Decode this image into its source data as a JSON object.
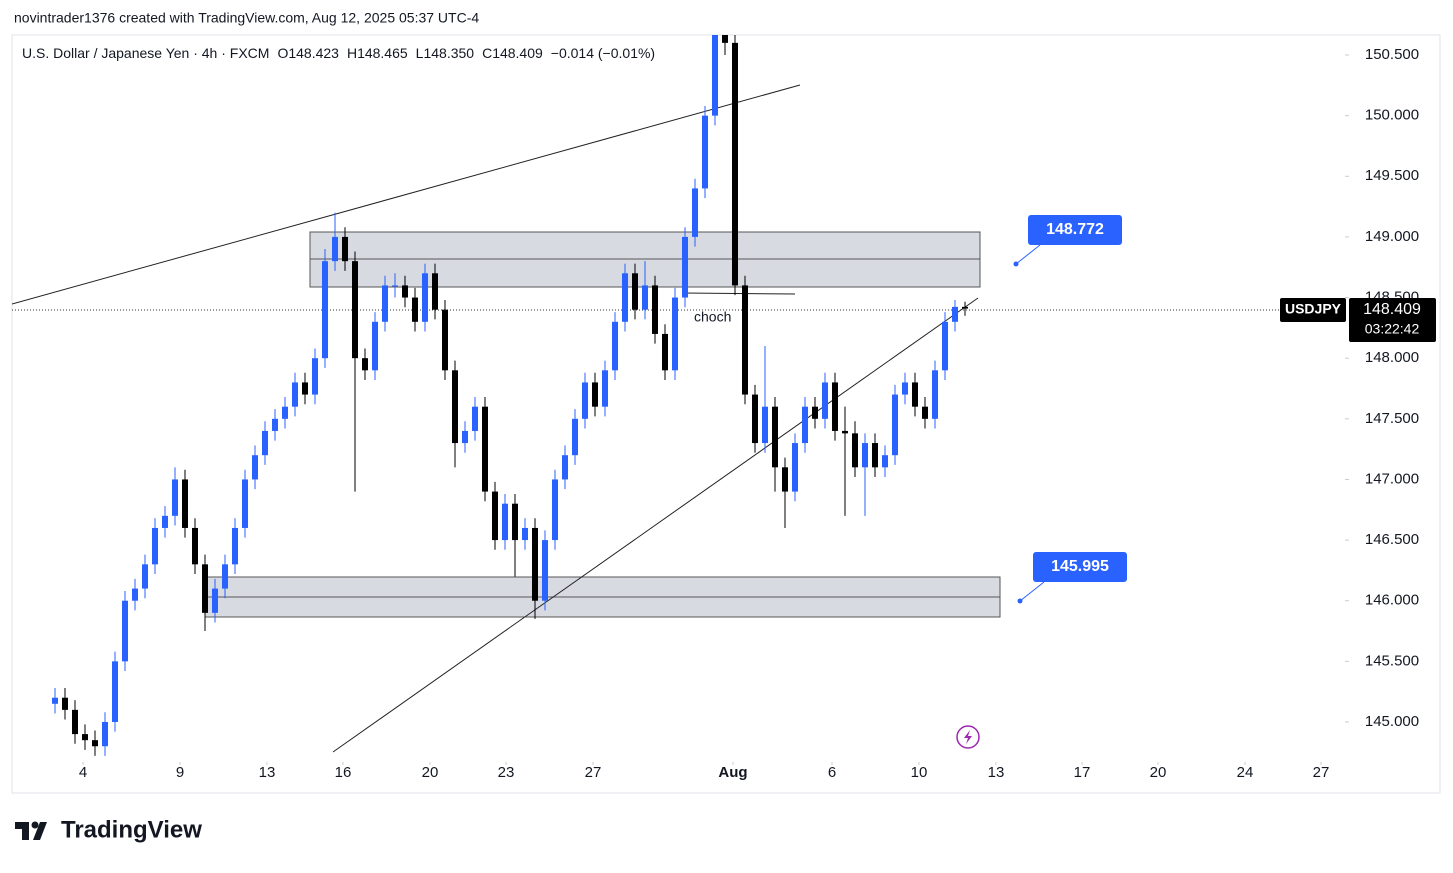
{
  "header": {
    "created_by": "novintrader1376 created with TradingView.com, Aug 12, 2025 05:37 UTC-4",
    "brand": "TradingView"
  },
  "chart_data": {
    "type": "candlestick",
    "title": "U.S. Dollar / Japanese Yen · 4h · FXCM",
    "ohlc_legend": [
      "O148.423",
      "H148.465",
      "L148.350",
      "C148.409",
      "−0.014 (−0.01%)"
    ],
    "symbol": "USDJPY",
    "last_price": "148.409",
    "countdown": "03:22:42",
    "annotations": [
      "choch",
      "148.772",
      "145.995"
    ],
    "up_color": "#2962ff",
    "down_color": "#000000",
    "open": [
      145.15,
      145.2,
      145.1,
      144.9,
      144.85,
      144.8,
      145.0,
      145.5,
      146.0,
      146.1,
      146.3,
      146.6,
      146.7,
      147.0,
      146.6,
      146.3,
      145.9,
      146.1,
      146.3,
      146.6,
      147.0,
      147.2,
      147.4,
      147.5,
      147.6,
      147.8,
      147.7,
      148.0,
      148.8,
      149.0,
      148.8,
      148.0,
      147.9,
      148.3,
      148.6,
      148.6,
      148.5,
      148.3,
      148.7,
      148.4,
      147.9,
      147.3,
      147.4,
      147.6,
      146.9,
      146.5,
      146.8,
      146.5,
      146.6,
      146.0,
      146.5,
      147.0,
      147.2,
      147.5,
      147.8,
      147.6,
      147.9,
      148.3,
      148.7,
      148.4,
      148.6,
      148.2,
      147.9,
      148.5,
      149.0,
      149.4,
      150.0,
      150.7,
      150.6,
      148.6,
      147.7,
      147.3,
      147.6,
      147.1,
      146.9,
      147.3,
      147.6,
      147.5,
      147.8,
      147.4,
      147.38,
      147.1,
      147.3,
      147.1,
      147.2,
      147.7,
      147.8,
      147.6,
      147.5,
      147.9,
      148.3,
      148.423
    ],
    "high": [
      145.28,
      145.28,
      145.18,
      144.98,
      144.93,
      145.08,
      145.58,
      146.08,
      146.18,
      146.38,
      146.68,
      146.78,
      147.1,
      147.08,
      146.68,
      146.38,
      146.18,
      146.38,
      146.68,
      147.08,
      147.28,
      147.48,
      147.58,
      147.68,
      147.88,
      147.88,
      148.08,
      148.9,
      149.2,
      149.08,
      148.88,
      148.08,
      148.38,
      148.68,
      148.7,
      148.68,
      148.58,
      148.78,
      148.78,
      148.48,
      147.98,
      147.48,
      147.68,
      147.68,
      146.98,
      146.88,
      146.88,
      146.68,
      146.68,
      146.58,
      147.08,
      147.28,
      147.58,
      147.88,
      147.88,
      147.98,
      148.38,
      148.78,
      148.78,
      148.8,
      148.68,
      148.28,
      148.58,
      149.08,
      149.48,
      150.08,
      150.8,
      150.78,
      150.68,
      148.68,
      147.78,
      148.1,
      147.68,
      147.18,
      147.38,
      147.68,
      147.68,
      147.88,
      147.88,
      147.6,
      147.48,
      147.38,
      147.38,
      147.28,
      147.78,
      147.88,
      147.88,
      147.68,
      147.98,
      148.38,
      148.48,
      148.465
    ],
    "low": [
      145.07,
      145.02,
      144.82,
      144.77,
      144.72,
      144.72,
      144.92,
      145.42,
      145.92,
      146.02,
      146.22,
      146.52,
      146.62,
      146.52,
      146.22,
      145.75,
      145.82,
      146.02,
      146.22,
      146.52,
      146.92,
      147.12,
      147.32,
      147.42,
      147.52,
      147.62,
      147.62,
      147.92,
      148.72,
      148.72,
      146.9,
      147.82,
      147.82,
      148.22,
      148.5,
      148.42,
      148.22,
      148.22,
      148.32,
      147.82,
      147.1,
      147.22,
      147.32,
      146.82,
      146.42,
      146.42,
      146.2,
      146.42,
      145.85,
      145.92,
      146.42,
      146.92,
      147.12,
      147.42,
      147.52,
      147.52,
      147.82,
      148.22,
      148.32,
      148.32,
      148.12,
      147.82,
      147.82,
      148.42,
      148.92,
      149.32,
      149.92,
      150.5,
      148.52,
      147.62,
      147.22,
      147.22,
      146.9,
      146.6,
      146.82,
      147.22,
      147.42,
      147.42,
      147.32,
      146.7,
      147.02,
      146.7,
      147.02,
      147.02,
      147.12,
      147.62,
      147.52,
      147.42,
      147.42,
      147.82,
      148.22,
      148.35
    ],
    "close": [
      145.2,
      145.1,
      144.9,
      144.85,
      144.8,
      145.0,
      145.5,
      146.0,
      146.1,
      146.3,
      146.6,
      146.7,
      147.0,
      146.6,
      146.3,
      145.9,
      146.1,
      146.3,
      146.6,
      147.0,
      147.2,
      147.4,
      147.5,
      147.6,
      147.8,
      147.7,
      148.0,
      148.8,
      149.0,
      148.8,
      148.0,
      147.9,
      148.3,
      148.6,
      148.6,
      148.5,
      148.3,
      148.7,
      148.4,
      147.9,
      147.3,
      147.4,
      147.6,
      146.9,
      146.5,
      146.8,
      146.5,
      146.6,
      146.0,
      146.5,
      147.0,
      147.2,
      147.5,
      147.8,
      147.6,
      147.9,
      148.3,
      148.7,
      148.4,
      148.6,
      148.2,
      147.9,
      148.5,
      149.0,
      149.4,
      150.0,
      150.7,
      150.6,
      148.6,
      147.7,
      147.3,
      147.6,
      147.1,
      146.9,
      147.3,
      147.6,
      147.5,
      147.8,
      147.4,
      147.38,
      147.1,
      147.3,
      147.1,
      147.2,
      147.7,
      147.8,
      147.6,
      147.5,
      147.9,
      148.3,
      148.423,
      148.409
    ],
    "xlim": [
      -4.3,
      129
    ],
    "xticks": [
      {
        "value": 2.8,
        "label": "4"
      },
      {
        "value": 12.5,
        "label": "9"
      },
      {
        "value": 21.2,
        "label": "13"
      },
      {
        "value": 28.8,
        "label": "16"
      },
      {
        "value": 37.5,
        "label": "20"
      },
      {
        "value": 45.1,
        "label": "23"
      },
      {
        "value": 53.8,
        "label": "27"
      },
      {
        "value": 67.8,
        "label": "Aug"
      },
      {
        "value": 77.7,
        "label": "6"
      },
      {
        "value": 86.4,
        "label": "10"
      },
      {
        "value": 94.1,
        "label": "13"
      },
      {
        "value": 102.7,
        "label": "17"
      },
      {
        "value": 110.3,
        "label": "20"
      },
      {
        "value": 119,
        "label": "24"
      },
      {
        "value": 126.6,
        "label": "27"
      }
    ],
    "ylim": [
      144.67,
      150.665
    ],
    "yticks": [
      {
        "value": 145,
        "label": "145.000"
      },
      {
        "value": 145.5,
        "label": "145.500"
      },
      {
        "value": 146,
        "label": "146.000"
      },
      {
        "value": 146.5,
        "label": "146.500"
      },
      {
        "value": 147,
        "label": "147.000"
      },
      {
        "value": 147.5,
        "label": "147.500"
      },
      {
        "value": 148,
        "label": "148.000"
      },
      {
        "value": 148.5,
        "label": "148.500"
      },
      {
        "value": 149,
        "label": "149.000"
      },
      {
        "value": 149.5,
        "label": "149.500"
      },
      {
        "value": 150,
        "label": "150.000"
      },
      {
        "value": 150.5,
        "label": "150.500"
      }
    ]
  }
}
